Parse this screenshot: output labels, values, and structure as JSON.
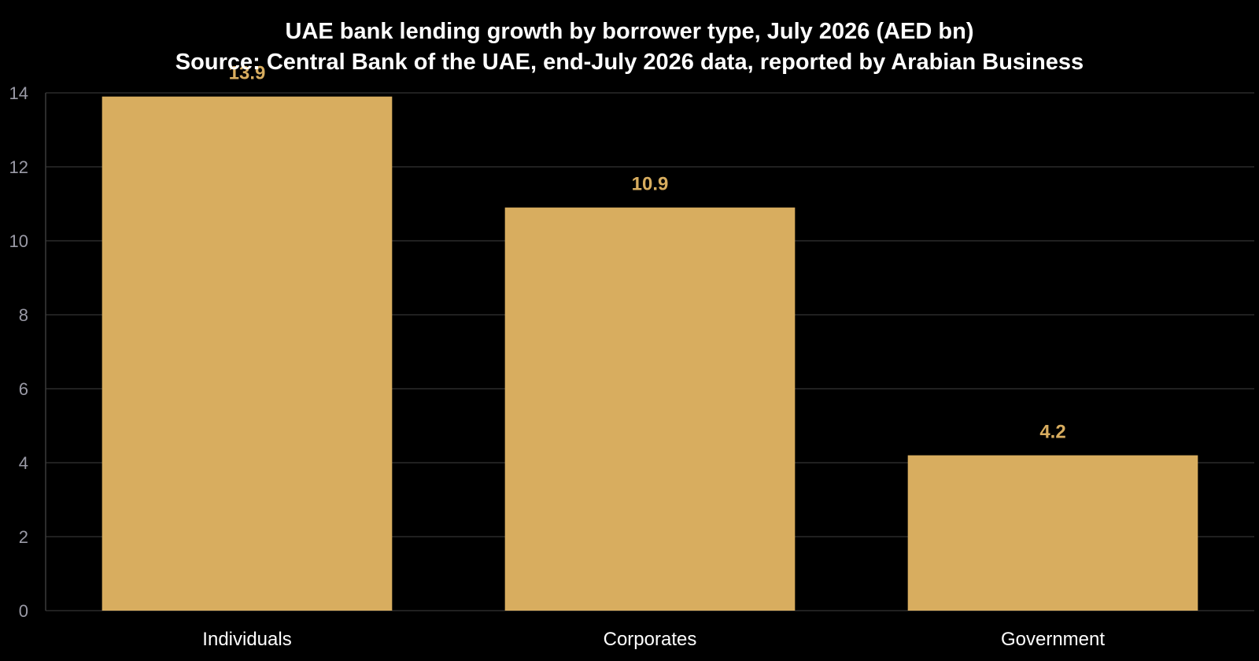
{
  "chart_data": {
    "type": "bar",
    "title": "UAE bank lending growth by borrower type, July 2026 (AED bn)",
    "subtitle": "Source: Central Bank of the UAE, end-July 2026 data, reported by Arabian Business",
    "categories": [
      "Individuals",
      "Corporates",
      "Government"
    ],
    "values": [
      13.9,
      10.9,
      4.2
    ],
    "data_labels": [
      "13.9",
      "10.9",
      "4.2"
    ],
    "xlabel": "",
    "ylabel": "",
    "ylim": [
      0,
      14
    ],
    "yticks": [
      0,
      2,
      4,
      6,
      8,
      10,
      12,
      14
    ],
    "grid": true,
    "legend": "none",
    "colors": {
      "bar": "#d8ad5f",
      "data_label": "#d8ad5f",
      "background": "#000000"
    }
  }
}
